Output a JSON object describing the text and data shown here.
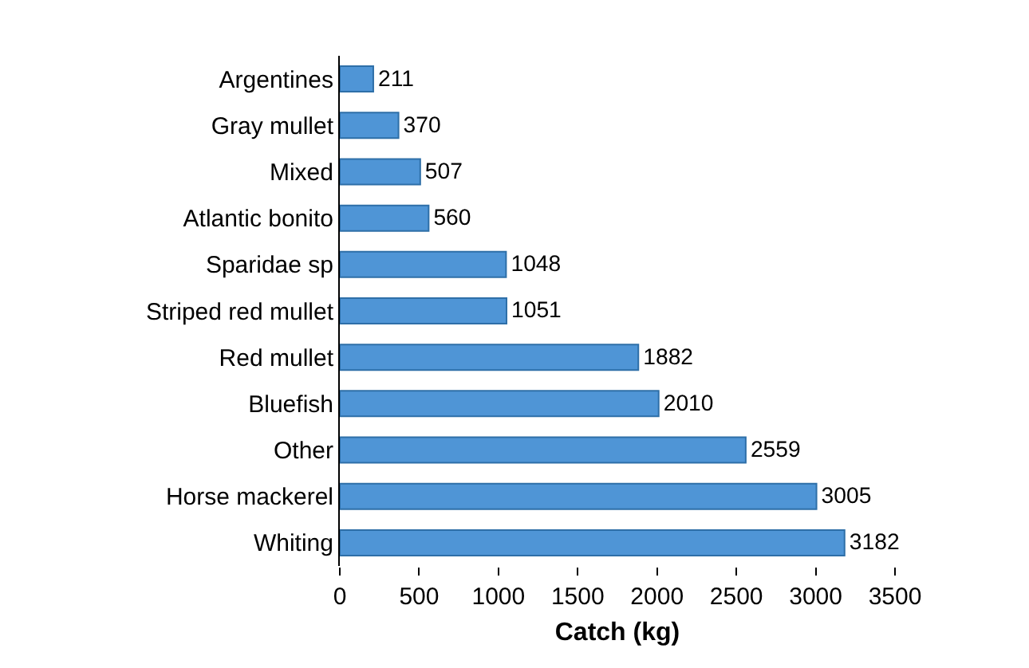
{
  "chart_data": {
    "type": "bar",
    "orientation": "horizontal",
    "xlabel": "Catch (kg)",
    "categories": [
      "Argentines",
      "Gray mullet",
      "Mixed",
      "Atlantic bonito",
      "Sparidae sp",
      "Striped red mullet",
      "Red mullet",
      "Bluefish",
      "Other",
      "Horse mackerel",
      "Whiting"
    ],
    "values": [
      211,
      370,
      507,
      560,
      1048,
      1051,
      1882,
      2010,
      2559,
      3005,
      3182
    ],
    "color": "#4f95d6",
    "data_labels": true,
    "xlim": [
      0,
      3500
    ],
    "xticks": [
      0,
      500,
      1000,
      1500,
      2000,
      2500,
      3000,
      3500
    ]
  }
}
